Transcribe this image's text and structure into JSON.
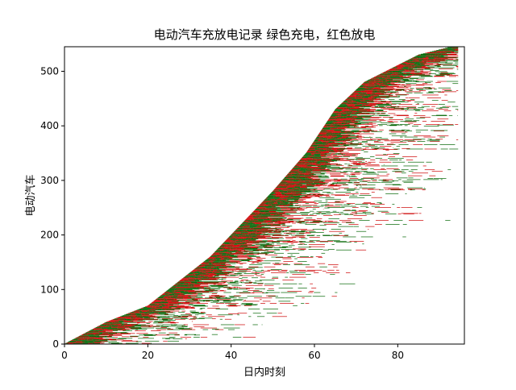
{
  "chart_data": {
    "type": "bar",
    "title": "电动汽车充放电记录  绿色充电，红色放电",
    "xlabel": "日内时刻",
    "ylabel": "电动汽车",
    "xlim": [
      0,
      96
    ],
    "ylim": [
      0,
      545
    ],
    "xticks": [
      0,
      20,
      40,
      60,
      80
    ],
    "yticks": [
      0,
      100,
      200,
      300,
      400,
      500
    ],
    "grid": false,
    "colors": {
      "charge": "#006400",
      "discharge": "#cc0000"
    },
    "series": [
      {
        "key": "charge",
        "color": "#006400"
      },
      {
        "key": "discharge",
        "color": "#cc0000"
      }
    ],
    "vehicle_count": 545,
    "arrival_curve": [
      [
        0,
        0
      ],
      [
        10,
        40
      ],
      [
        20,
        70
      ],
      [
        25,
        100
      ],
      [
        35,
        160
      ],
      [
        50,
        280
      ],
      [
        58,
        350
      ],
      [
        65,
        430
      ],
      [
        72,
        480
      ],
      [
        85,
        530
      ],
      [
        93,
        545
      ]
    ]
  }
}
